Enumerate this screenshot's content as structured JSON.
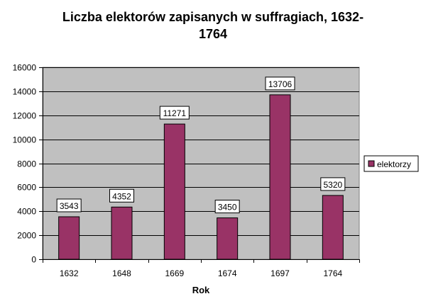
{
  "chart_data": {
    "type": "bar",
    "title": "Liczba elektorów zapisanych w suffragiach, 1632-\n1764",
    "xlabel": "Rok",
    "ylabel": "",
    "categories": [
      "1632",
      "1648",
      "1669",
      "1674",
      "1697",
      "1764"
    ],
    "series": [
      {
        "name": "elektorzy",
        "values": [
          3543,
          4352,
          11271,
          3450,
          13706,
          5320
        ]
      }
    ],
    "ylim": [
      0,
      16000
    ],
    "yticks": [
      0,
      2000,
      4000,
      6000,
      8000,
      10000,
      12000,
      14000,
      16000
    ],
    "grid": true,
    "legend": "right",
    "data_labels": true,
    "colors": {
      "bar": "#993366",
      "plot_bg": "#c0c0c0",
      "grid": "#000000"
    }
  }
}
